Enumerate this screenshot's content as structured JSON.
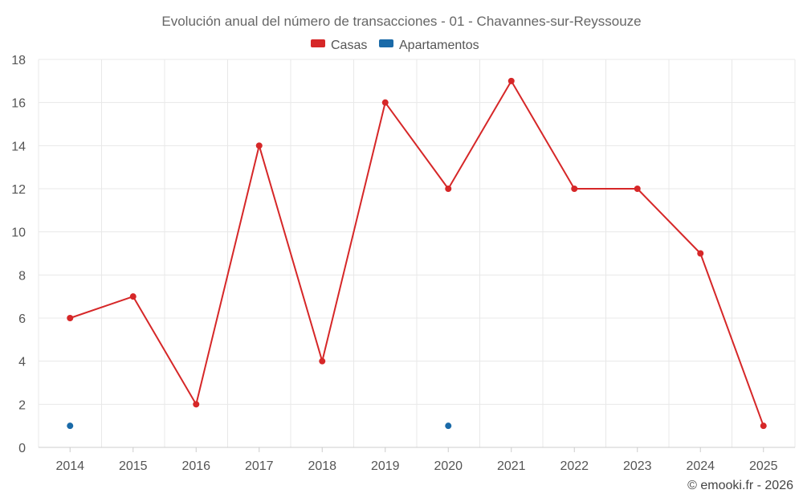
{
  "chart_data": {
    "type": "line",
    "title": "Evolución anual del número de transacciones - 01 - Chavannes-sur-Reyssouze",
    "categories": [
      "2014",
      "2015",
      "2016",
      "2017",
      "2018",
      "2019",
      "2020",
      "2021",
      "2022",
      "2023",
      "2024",
      "2025"
    ],
    "series": [
      {
        "name": "Casas",
        "color": "#d62728",
        "values": [
          6,
          7,
          2,
          14,
          4,
          16,
          12,
          17,
          12,
          12,
          9,
          1
        ]
      },
      {
        "name": "Apartamentos",
        "color": "#1a6aa8",
        "values": [
          1,
          null,
          null,
          null,
          null,
          null,
          1,
          null,
          null,
          null,
          null,
          null
        ]
      }
    ],
    "yticks": [
      "0",
      "2",
      "4",
      "6",
      "8",
      "10",
      "12",
      "14",
      "16",
      "18"
    ],
    "ylim": [
      0,
      18
    ],
    "grid": true,
    "legend_position": "top-center"
  },
  "credit": "© emooki.fr - 2026"
}
